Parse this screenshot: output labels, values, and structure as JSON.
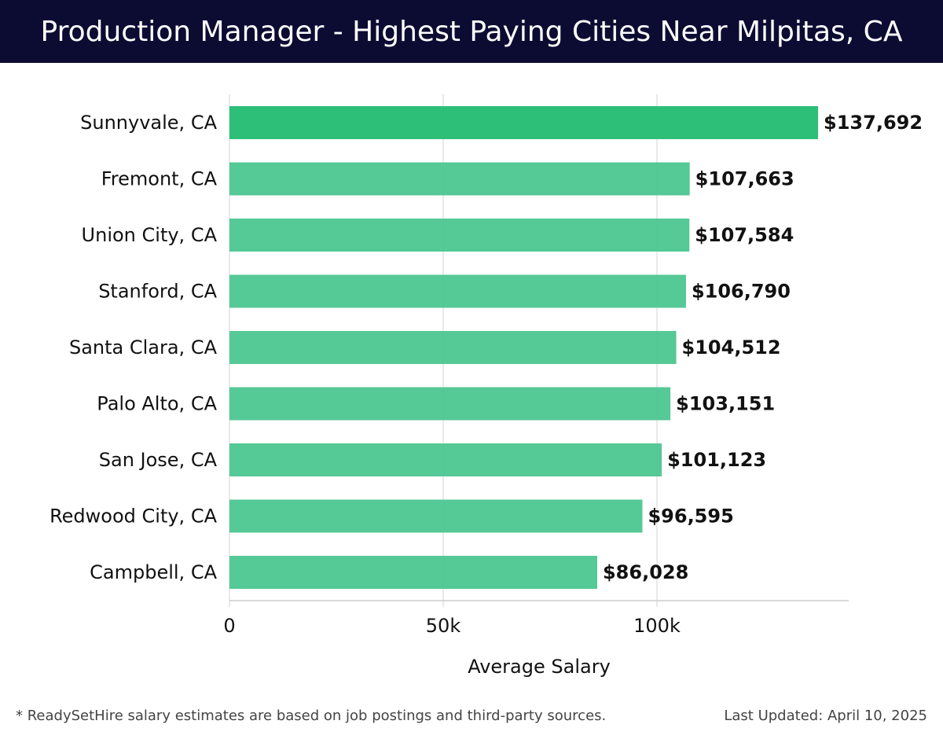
{
  "header": {
    "title": "Production Manager - Highest Paying Cities Near Milpitas, CA"
  },
  "chart_data": {
    "type": "bar",
    "orientation": "horizontal",
    "title": "Production Manager - Highest Paying Cities Near Milpitas, CA",
    "xlabel": "Average Salary",
    "ylabel": "",
    "xlim": [
      0,
      144000
    ],
    "xticks": [
      0,
      50000,
      100000
    ],
    "xtick_labels": [
      "0",
      "50k",
      "100k"
    ],
    "grid": "vertical",
    "categories": [
      "Sunnyvale, CA",
      "Fremont, CA",
      "Union City, CA",
      "Stanford, CA",
      "Santa Clara, CA",
      "Palo Alto, CA",
      "San Jose, CA",
      "Redwood City, CA",
      "Campbell, CA"
    ],
    "values": [
      137692,
      107663,
      107584,
      106790,
      104512,
      103151,
      101123,
      96595,
      86028
    ],
    "value_labels": [
      "$137,692",
      "$107,663",
      "$107,584",
      "$106,790",
      "$104,512",
      "$103,151",
      "$101,123",
      "$96,595",
      "$86,028"
    ],
    "colors": {
      "top_bar": "#2dbf78",
      "bars": "#4cc690",
      "gridline": "#e2e2e2",
      "axis": "#cccccc"
    }
  },
  "footer": {
    "note": "* ReadySetHire salary estimates are based on job postings and third-party sources.",
    "updated": "Last Updated: April 10, 2025"
  }
}
